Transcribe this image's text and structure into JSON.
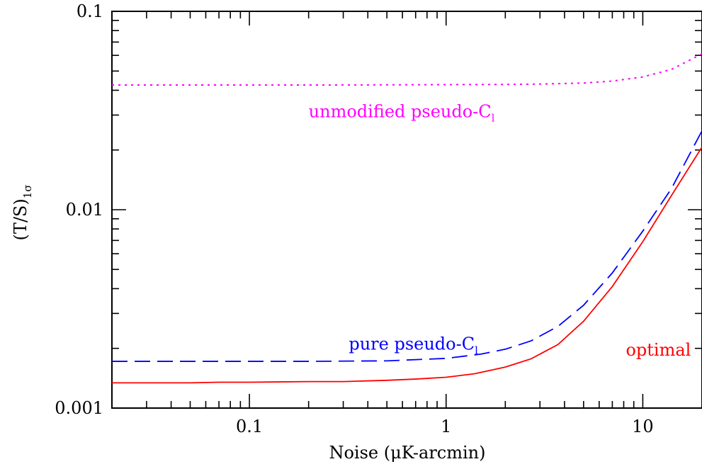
{
  "chart_data": {
    "type": "line",
    "xlabel": "Noise (μK-arcmin)",
    "ylabel": "(T/S)",
    "ylabel_subscript": "1σ",
    "xscale": "log",
    "yscale": "log",
    "xlim": [
      0.02,
      20
    ],
    "ylim": [
      0.001,
      0.1
    ],
    "x_ticks": [
      {
        "value": 0.1,
        "label": "0.1"
      },
      {
        "value": 1,
        "label": "1"
      },
      {
        "value": 10,
        "label": "10"
      }
    ],
    "y_ticks": [
      {
        "value": 0.001,
        "label": "0.001"
      },
      {
        "value": 0.01,
        "label": "0.01"
      },
      {
        "value": 0.1,
        "label": "0.1"
      }
    ],
    "grid": false,
    "series": [
      {
        "key": "unmodified",
        "color": "#ff00ff",
        "dash": "dotted",
        "x": [
          0.02,
          0.05,
          0.1,
          0.2,
          0.5,
          1,
          2,
          3,
          5,
          7,
          10,
          14,
          20
        ],
        "y": [
          0.0425,
          0.0425,
          0.0425,
          0.0425,
          0.0426,
          0.0427,
          0.0428,
          0.043,
          0.0435,
          0.0445,
          0.0467,
          0.051,
          0.061
        ]
      },
      {
        "key": "pure",
        "color": "#0000ff",
        "dash": "dashed",
        "x": [
          0.02,
          0.05,
          0.1,
          0.2,
          0.5,
          1,
          1.5,
          2,
          2.7,
          3.7,
          5,
          7,
          10,
          14,
          20
        ],
        "y": [
          0.00172,
          0.00172,
          0.00172,
          0.00172,
          0.00173,
          0.00178,
          0.00187,
          0.00198,
          0.00218,
          0.00258,
          0.0033,
          0.0048,
          0.0078,
          0.0128,
          0.025
        ]
      },
      {
        "key": "optimal",
        "color": "#ff0000",
        "dash": "solid",
        "x": [
          0.02,
          0.05,
          0.07,
          0.1,
          0.2,
          0.3,
          0.5,
          0.7,
          1,
          1.4,
          2,
          2.7,
          3.7,
          5,
          7,
          10,
          14,
          20
        ],
        "y": [
          0.00134,
          0.00134,
          0.00135,
          0.00135,
          0.00136,
          0.00136,
          0.00138,
          0.0014,
          0.00143,
          0.00149,
          0.00161,
          0.00177,
          0.00209,
          0.00274,
          0.0041,
          0.0069,
          0.0118,
          0.0207
        ]
      }
    ],
    "annotations": [
      {
        "key": "unmodified",
        "text": "unmodified pseudo-C",
        "sub": "l",
        "color": "#ff00ff",
        "x": 0.2,
        "y": 0.0292
      },
      {
        "key": "pure",
        "text": "pure pseudo-C",
        "sub": "l",
        "color": "#0000ff",
        "x": 0.32,
        "y": 0.00197
      },
      {
        "key": "optimal",
        "text": "optimal",
        "color": "#ff0000",
        "x": 8.2,
        "y": 0.00184
      }
    ]
  }
}
